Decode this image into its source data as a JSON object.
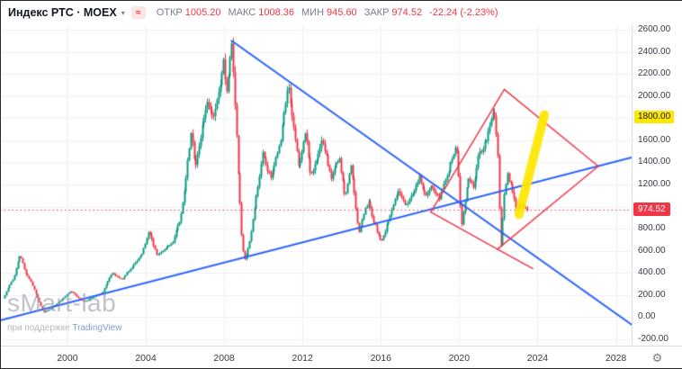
{
  "header": {
    "symbol": "Индекс РТС · MOEX",
    "ohlc": [
      {
        "label": "ОТКР",
        "value": "1005.20"
      },
      {
        "label": "МАКС",
        "value": "1008.36"
      },
      {
        "label": "МИН",
        "value": "945.60"
      },
      {
        "label": "ЗАКР",
        "value": "974.52"
      }
    ],
    "change": "-22.24 (-2.23%)"
  },
  "icons": {
    "chevron_down": "▾",
    "market_status": "≈",
    "gear": "⚙"
  },
  "watermark": {
    "title": "sMart-lab",
    "subtitle_prefix": "при поддержке",
    "subtitle_brand": "TradingView"
  },
  "colors": {
    "up": "#089981",
    "down": "#f23645",
    "grid": "#eceff4",
    "axis_text": "#363a45",
    "muted_text": "#787b86",
    "trendline": "#2962ff",
    "pattern": "#f23645",
    "highlight_arrow": "#ffe600",
    "price_line": "#f23645",
    "price_label_bg": "#f23645",
    "level_label_bg": "#ffe600"
  },
  "price_axis": {
    "last_price_label": "974.52",
    "ticks": [
      {
        "value": 2600,
        "label": "2600.00"
      },
      {
        "value": 2400,
        "label": "2400.00"
      },
      {
        "value": 2200,
        "label": "2200.00"
      },
      {
        "value": 2000,
        "label": "2000.00"
      },
      {
        "value": 1800,
        "label": "1800.00",
        "highlight": true
      },
      {
        "value": 1600,
        "label": "1600.00"
      },
      {
        "value": 1400,
        "label": "1400.00"
      },
      {
        "value": 1200,
        "label": "1200.00"
      },
      {
        "value": 800,
        "label": "800.00"
      },
      {
        "value": 600,
        "label": "600.00"
      },
      {
        "value": 400,
        "label": "400.00"
      },
      {
        "value": 200,
        "label": "200.00"
      },
      {
        "value": 0,
        "label": "0.00"
      },
      {
        "value": -200,
        "label": "-200.00"
      }
    ]
  },
  "time_axis": {
    "ticks": [
      {
        "year": 2000,
        "label": "2000"
      },
      {
        "year": 2004,
        "label": "2004"
      },
      {
        "year": 2008,
        "label": "2008"
      },
      {
        "year": 2012,
        "label": "2012"
      },
      {
        "year": 2016,
        "label": "2016"
      },
      {
        "year": 2020,
        "label": "2020"
      },
      {
        "year": 2024,
        "label": "2024"
      },
      {
        "year": 2028,
        "label": "2028"
      }
    ]
  },
  "chart_data": {
    "type": "candlestick",
    "title": "Индекс РТС · MOEX",
    "x_range_years": [
      1996.56,
      2028.8
    ],
    "y_range": [
      -200,
      2600
    ],
    "y_grid_step": 200,
    "candles_start_year": 1996.75,
    "candles_end_year": 2023.45,
    "last_close": 974.52,
    "ohlc_last": {
      "open": 1005.2,
      "high": 1008.36,
      "low": 945.6,
      "close": 974.52,
      "change": -22.24,
      "change_pct": -2.23
    },
    "price_line_value": 974.52,
    "keypoints_year_value": [
      [
        1996.75,
        170
      ],
      [
        1997.0,
        260
      ],
      [
        1997.3,
        360
      ],
      [
        1997.6,
        570
      ],
      [
        1997.9,
        400
      ],
      [
        1998.2,
        310
      ],
      [
        1998.6,
        130
      ],
      [
        1998.8,
        40
      ],
      [
        1999.3,
        90
      ],
      [
        1999.8,
        170
      ],
      [
        2000.2,
        240
      ],
      [
        2000.6,
        170
      ],
      [
        2000.9,
        140
      ],
      [
        2001.3,
        180
      ],
      [
        2001.8,
        220
      ],
      [
        2002.3,
        400
      ],
      [
        2002.8,
        340
      ],
      [
        2003.3,
        450
      ],
      [
        2003.8,
        560
      ],
      [
        2004.2,
        780
      ],
      [
        2004.6,
        550
      ],
      [
        2005.0,
        610
      ],
      [
        2005.4,
        680
      ],
      [
        2005.8,
        900
      ],
      [
        2006.0,
        1130
      ],
      [
        2006.35,
        1700
      ],
      [
        2006.55,
        1350
      ],
      [
        2006.9,
        1700
      ],
      [
        2007.2,
        1950
      ],
      [
        2007.45,
        1800
      ],
      [
        2007.8,
        2100
      ],
      [
        2008.0,
        2300
      ],
      [
        2008.15,
        2020
      ],
      [
        2008.4,
        2490
      ],
      [
        2008.6,
        1900
      ],
      [
        2008.75,
        1300
      ],
      [
        2008.95,
        630
      ],
      [
        2009.1,
        510
      ],
      [
        2009.4,
        750
      ],
      [
        2009.8,
        1250
      ],
      [
        2010.0,
        1480
      ],
      [
        2010.4,
        1250
      ],
      [
        2010.9,
        1600
      ],
      [
        2011.3,
        2090
      ],
      [
        2011.6,
        1700
      ],
      [
        2011.85,
        1350
      ],
      [
        2012.2,
        1680
      ],
      [
        2012.45,
        1270
      ],
      [
        2012.8,
        1450
      ],
      [
        2013.0,
        1620
      ],
      [
        2013.5,
        1270
      ],
      [
        2013.9,
        1450
      ],
      [
        2014.2,
        1080
      ],
      [
        2014.5,
        1380
      ],
      [
        2014.9,
        750
      ],
      [
        2015.1,
        900
      ],
      [
        2015.4,
        1050
      ],
      [
        2015.7,
        850
      ],
      [
        2016.05,
        670
      ],
      [
        2016.5,
        930
      ],
      [
        2016.9,
        1150
      ],
      [
        2017.3,
        1000
      ],
      [
        2017.7,
        1130
      ],
      [
        2018.0,
        1280
      ],
      [
        2018.3,
        1080
      ],
      [
        2018.6,
        1180
      ],
      [
        2019.0,
        1080
      ],
      [
        2019.4,
        1280
      ],
      [
        2019.9,
        1550
      ],
      [
        2020.15,
        830
      ],
      [
        2020.5,
        1270
      ],
      [
        2020.75,
        1170
      ],
      [
        2021.0,
        1450
      ],
      [
        2021.4,
        1600
      ],
      [
        2021.8,
        1920
      ],
      [
        2022.0,
        1480
      ],
      [
        2022.15,
        610
      ],
      [
        2022.35,
        1150
      ],
      [
        2022.5,
        1300
      ],
      [
        2022.7,
        1170
      ],
      [
        2022.95,
        970
      ],
      [
        2023.2,
        1030
      ],
      [
        2023.45,
        974.52
      ]
    ],
    "trendlines": [
      {
        "name": "descending-resistance",
        "points": [
          [
            2008.38,
            2500
          ],
          [
            2028.8,
            -68
          ]
        ]
      },
      {
        "name": "ascending-support",
        "points": [
          [
            1996.56,
            -30
          ],
          [
            2028.8,
            1445
          ]
        ]
      }
    ],
    "pattern_lines": [
      [
        [
          2018.55,
          950
        ],
        [
          2022.3,
          2060
        ]
      ],
      [
        [
          2022.3,
          2060
        ],
        [
          2027.1,
          1365
        ]
      ],
      [
        [
          2018.55,
          950
        ],
        [
          2021.95,
          615
        ]
      ],
      [
        [
          2021.95,
          615
        ],
        [
          2023.75,
          440
        ]
      ],
      [
        [
          2021.95,
          615
        ],
        [
          2027.1,
          1365
        ]
      ]
    ],
    "highlight_arrow": {
      "from": [
        2023.05,
        930
      ],
      "to": [
        2024.35,
        1830
      ]
    }
  }
}
